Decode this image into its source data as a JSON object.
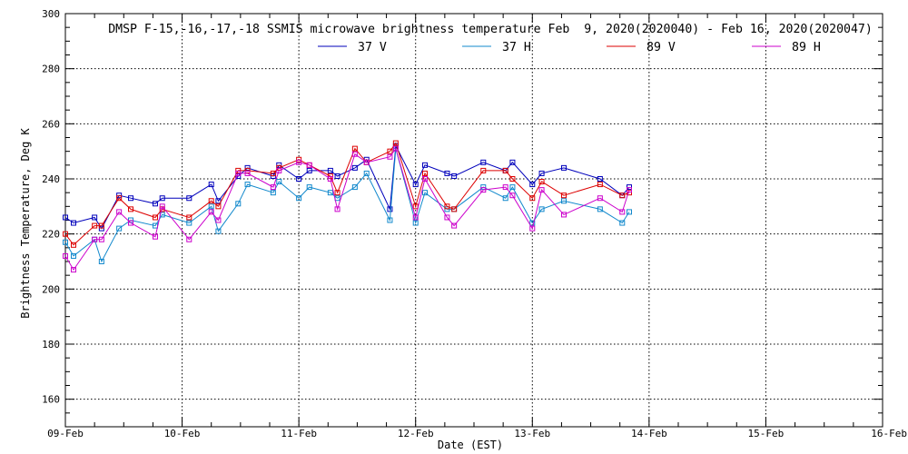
{
  "chart_data": {
    "type": "line",
    "title": "DMSP F-15,-16,-17,-18 SSMIS microwave brightness temperature Feb  9, 2020(2020040) - Feb 16, 2020(2020047)",
    "xlabel": "Date (EST)",
    "ylabel": "Brightness Temperature, Deg K",
    "xlim": [
      0,
      7
    ],
    "ylim": [
      150,
      300
    ],
    "yticks": [
      160,
      180,
      200,
      220,
      240,
      260,
      280,
      300
    ],
    "ytick_labels": [
      "160",
      "180",
      "200",
      "220",
      "240",
      "260",
      "280",
      "300"
    ],
    "xtick_labels": [
      "09-Feb",
      "10-Feb",
      "11-Feb",
      "12-Feb",
      "13-Feb",
      "14-Feb",
      "15-Feb",
      "16-Feb"
    ],
    "grid": true,
    "legend_position": "top-center",
    "series": [
      {
        "name": "37 V",
        "color": "#0000bb",
        "points": [
          [
            0.0,
            226
          ],
          [
            0.07,
            224
          ],
          [
            0.25,
            226
          ],
          [
            0.31,
            222
          ],
          [
            0.46,
            234
          ],
          [
            0.56,
            233
          ],
          [
            0.77,
            231
          ],
          [
            0.83,
            233
          ],
          [
            1.06,
            233
          ],
          [
            1.25,
            238
          ],
          [
            1.31,
            232
          ],
          [
            1.48,
            241
          ],
          [
            1.56,
            244
          ],
          [
            1.78,
            241
          ],
          [
            1.83,
            245
          ],
          [
            2.0,
            240
          ],
          [
            2.09,
            243
          ],
          [
            2.27,
            243
          ],
          [
            2.33,
            241
          ],
          [
            2.48,
            244
          ],
          [
            2.58,
            247
          ],
          [
            2.78,
            229
          ],
          [
            2.83,
            252
          ],
          [
            3.0,
            238
          ],
          [
            3.08,
            245
          ],
          [
            3.27,
            242
          ],
          [
            3.33,
            241
          ],
          [
            3.58,
            246
          ],
          [
            3.77,
            243
          ],
          [
            3.83,
            246
          ],
          [
            4.0,
            238
          ],
          [
            4.08,
            242
          ],
          [
            4.27,
            244
          ],
          [
            4.58,
            240
          ],
          [
            4.77,
            234
          ],
          [
            4.83,
            237
          ]
        ]
      },
      {
        "name": "37 H",
        "color": "#1188cc",
        "points": [
          [
            0.0,
            217
          ],
          [
            0.07,
            212
          ],
          [
            0.25,
            218
          ],
          [
            0.31,
            210
          ],
          [
            0.46,
            222
          ],
          [
            0.56,
            225
          ],
          [
            0.77,
            223
          ],
          [
            0.83,
            227
          ],
          [
            1.06,
            224
          ],
          [
            1.25,
            230
          ],
          [
            1.31,
            221
          ],
          [
            1.48,
            231
          ],
          [
            1.56,
            238
          ],
          [
            1.78,
            235
          ],
          [
            1.83,
            239
          ],
          [
            2.0,
            233
          ],
          [
            2.09,
            237
          ],
          [
            2.27,
            235
          ],
          [
            2.33,
            233
          ],
          [
            2.48,
            237
          ],
          [
            2.58,
            242
          ],
          [
            2.78,
            225
          ],
          [
            2.83,
            251
          ],
          [
            3.0,
            224
          ],
          [
            3.08,
            235
          ],
          [
            3.27,
            229
          ],
          [
            3.33,
            229
          ],
          [
            3.58,
            237
          ],
          [
            3.77,
            233
          ],
          [
            3.83,
            237
          ],
          [
            4.0,
            224
          ],
          [
            4.08,
            229
          ],
          [
            4.27,
            232
          ],
          [
            4.58,
            229
          ],
          [
            4.77,
            224
          ],
          [
            4.83,
            228
          ]
        ]
      },
      {
        "name": "89 V",
        "color": "#dd0000",
        "points": [
          [
            0.0,
            220
          ],
          [
            0.07,
            216
          ],
          [
            0.25,
            223
          ],
          [
            0.31,
            223
          ],
          [
            0.46,
            233
          ],
          [
            0.56,
            229
          ],
          [
            0.77,
            226
          ],
          [
            0.83,
            229
          ],
          [
            1.06,
            226
          ],
          [
            1.25,
            232
          ],
          [
            1.31,
            230
          ],
          [
            1.48,
            243
          ],
          [
            1.56,
            243
          ],
          [
            1.78,
            242
          ],
          [
            1.83,
            244
          ],
          [
            2.0,
            247
          ],
          [
            2.09,
            245
          ],
          [
            2.27,
            241
          ],
          [
            2.33,
            235
          ],
          [
            2.48,
            251
          ],
          [
            2.58,
            246
          ],
          [
            2.78,
            250
          ],
          [
            2.83,
            253
          ],
          [
            3.0,
            230
          ],
          [
            3.08,
            242
          ],
          [
            3.27,
            230
          ],
          [
            3.33,
            229
          ],
          [
            3.58,
            243
          ],
          [
            3.77,
            243
          ],
          [
            3.83,
            240
          ],
          [
            4.0,
            233
          ],
          [
            4.08,
            239
          ],
          [
            4.27,
            234
          ],
          [
            4.58,
            238
          ],
          [
            4.77,
            234
          ],
          [
            4.83,
            235
          ]
        ]
      },
      {
        "name": "89 H",
        "color": "#cc00cc",
        "points": [
          [
            0.0,
            212
          ],
          [
            0.07,
            207
          ],
          [
            0.25,
            218
          ],
          [
            0.31,
            218
          ],
          [
            0.46,
            228
          ],
          [
            0.56,
            224
          ],
          [
            0.77,
            219
          ],
          [
            0.83,
            230
          ],
          [
            1.06,
            218
          ],
          [
            1.25,
            228
          ],
          [
            1.31,
            225
          ],
          [
            1.48,
            242
          ],
          [
            1.56,
            242
          ],
          [
            1.78,
            237
          ],
          [
            1.83,
            243
          ],
          [
            2.0,
            246
          ],
          [
            2.09,
            245
          ],
          [
            2.27,
            240
          ],
          [
            2.33,
            229
          ],
          [
            2.48,
            249
          ],
          [
            2.58,
            246
          ],
          [
            2.78,
            248
          ],
          [
            2.83,
            251
          ],
          [
            3.0,
            226
          ],
          [
            3.08,
            240
          ],
          [
            3.27,
            226
          ],
          [
            3.33,
            223
          ],
          [
            3.58,
            236
          ],
          [
            3.77,
            237
          ],
          [
            3.83,
            234
          ],
          [
            4.0,
            222
          ],
          [
            4.08,
            236
          ],
          [
            4.27,
            227
          ],
          [
            4.58,
            233
          ],
          [
            4.77,
            228
          ],
          [
            4.83,
            236
          ]
        ]
      }
    ]
  }
}
